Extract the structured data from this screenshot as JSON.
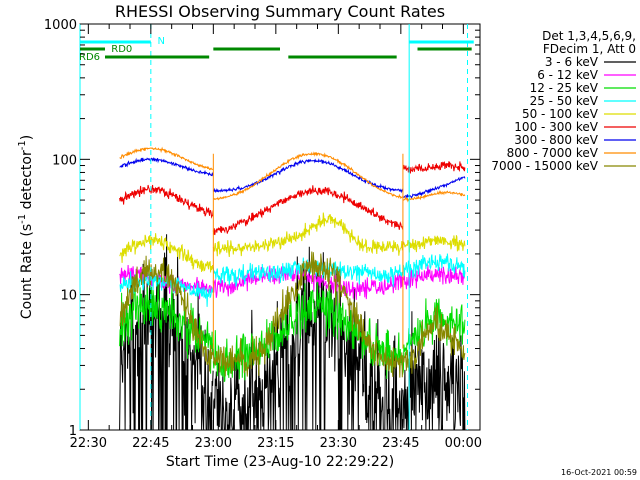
{
  "chart_data": {
    "type": "line",
    "title": "RHESSI Observing Summary Count Rates",
    "xlabel": "Start Time (23-Aug-10 22:29:22)",
    "ylabel": "Count Rate (s⁻¹ detector⁻¹)",
    "ylabel_main": "Count Rate (s",
    "ylabel_sup1": "-1",
    "ylabel_mid": " detector",
    "ylabel_sup2": "-1",
    "ylabel_end": ")",
    "yscale": "log",
    "ylim": [
      1,
      1000
    ],
    "xlim_minutes": [
      -2,
      94
    ],
    "xtick_labels": [
      "22:30",
      "22:45",
      "23:00",
      "23:15",
      "23:30",
      "23:45",
      "00:00"
    ],
    "ytick_labels": [
      "1",
      "10",
      "100",
      "1000"
    ],
    "legend_header": [
      "Det 1,3,4,5,6,9,",
      "FDecim 1, Att 0"
    ],
    "series": [
      {
        "name": "3 - 6 keV",
        "color": "#000000"
      },
      {
        "name": "6 - 12 keV",
        "color": "#ff00ff"
      },
      {
        "name": "12 - 25 keV",
        "color": "#00dd00"
      },
      {
        "name": "25 - 50 keV",
        "color": "#00ffff"
      },
      {
        "name": "50 - 100 keV",
        "color": "#dddd00"
      },
      {
        "name": "100 - 300 keV",
        "color": "#ee0000"
      },
      {
        "name": "300 - 800 keV",
        "color": "#0000ee"
      },
      {
        "name": "800 - 7000 keV",
        "color": "#ff8c00"
      },
      {
        "name": "7000 - 15000 keV",
        "color": "#888800"
      }
    ],
    "flags": [
      {
        "label": "N",
        "color": "#00ffff"
      },
      {
        "label": "RD0",
        "color": "#008800"
      },
      {
        "label": "RD6",
        "color": "#008800"
      }
    ],
    "timestamp": "16-Oct-2021 00:59"
  }
}
